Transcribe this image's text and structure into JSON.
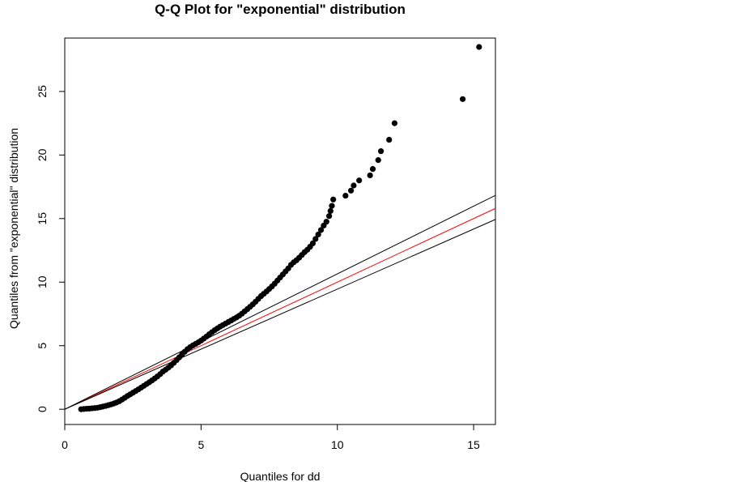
{
  "chart_data": {
    "type": "scatter",
    "title": "Q-Q Plot for \"exponential\" distribution",
    "xlabel": "Quantiles for dd",
    "ylabel": "Quantiles from \"exponential\" distribution",
    "xlim": [
      0,
      15.8
    ],
    "ylim": [
      -1.2,
      29.2
    ],
    "xticks": [
      0,
      5,
      10,
      15
    ],
    "yticks": [
      0,
      5,
      10,
      15,
      20,
      25
    ],
    "grid": false,
    "legend": "none",
    "point_color": "#000000",
    "series": [
      {
        "points": [
          [
            0.6,
            0.0
          ],
          [
            0.7,
            0.02
          ],
          [
            0.8,
            0.04
          ],
          [
            0.9,
            0.05
          ],
          [
            1.0,
            0.07
          ],
          [
            1.1,
            0.09
          ],
          [
            1.2,
            0.12
          ],
          [
            1.3,
            0.16
          ],
          [
            1.4,
            0.21
          ],
          [
            1.5,
            0.26
          ],
          [
            1.6,
            0.32
          ],
          [
            1.7,
            0.38
          ],
          [
            1.8,
            0.45
          ],
          [
            1.9,
            0.53
          ],
          [
            2.0,
            0.63
          ],
          [
            2.1,
            0.76
          ],
          [
            2.2,
            0.9
          ],
          [
            2.3,
            1.04
          ],
          [
            2.4,
            1.17
          ],
          [
            2.5,
            1.3
          ],
          [
            2.6,
            1.43
          ],
          [
            2.7,
            1.56
          ],
          [
            2.8,
            1.7
          ],
          [
            2.9,
            1.84
          ],
          [
            3.0,
            1.98
          ],
          [
            3.1,
            2.12
          ],
          [
            3.2,
            2.27
          ],
          [
            3.3,
            2.42
          ],
          [
            3.4,
            2.58
          ],
          [
            3.5,
            2.76
          ],
          [
            3.6,
            2.96
          ],
          [
            3.7,
            3.11
          ],
          [
            3.8,
            3.27
          ],
          [
            3.9,
            3.45
          ],
          [
            4.0,
            3.65
          ],
          [
            4.1,
            3.86
          ],
          [
            4.2,
            4.08
          ],
          [
            4.3,
            4.3
          ],
          [
            4.4,
            4.52
          ],
          [
            4.5,
            4.72
          ],
          [
            4.6,
            4.88
          ],
          [
            4.7,
            5.02
          ],
          [
            4.8,
            5.14
          ],
          [
            4.9,
            5.26
          ],
          [
            5.0,
            5.4
          ],
          [
            5.1,
            5.56
          ],
          [
            5.2,
            5.72
          ],
          [
            5.3,
            5.9
          ],
          [
            5.4,
            6.06
          ],
          [
            5.5,
            6.22
          ],
          [
            5.6,
            6.36
          ],
          [
            5.7,
            6.5
          ],
          [
            5.8,
            6.62
          ],
          [
            5.9,
            6.74
          ],
          [
            6.0,
            6.86
          ],
          [
            6.1,
            6.98
          ],
          [
            6.2,
            7.1
          ],
          [
            6.3,
            7.22
          ],
          [
            6.4,
            7.36
          ],
          [
            6.5,
            7.52
          ],
          [
            6.6,
            7.7
          ],
          [
            6.7,
            7.88
          ],
          [
            6.8,
            8.06
          ],
          [
            6.9,
            8.25
          ],
          [
            7.0,
            8.46
          ],
          [
            7.1,
            8.68
          ],
          [
            7.2,
            8.9
          ],
          [
            7.3,
            9.08
          ],
          [
            7.4,
            9.26
          ],
          [
            7.5,
            9.46
          ],
          [
            7.6,
            9.66
          ],
          [
            7.7,
            9.88
          ],
          [
            7.8,
            10.12
          ],
          [
            7.9,
            10.36
          ],
          [
            8.0,
            10.6
          ],
          [
            8.1,
            10.84
          ],
          [
            8.2,
            11.08
          ],
          [
            8.3,
            11.36
          ],
          [
            8.4,
            11.56
          ],
          [
            8.5,
            11.72
          ],
          [
            8.6,
            11.92
          ],
          [
            8.7,
            12.14
          ],
          [
            8.8,
            12.36
          ],
          [
            8.9,
            12.55
          ],
          [
            9.0,
            12.78
          ],
          [
            9.1,
            13.05
          ],
          [
            9.2,
            13.4
          ],
          [
            9.3,
            13.75
          ],
          [
            9.4,
            14.1
          ],
          [
            9.5,
            14.45
          ],
          [
            9.6,
            14.75
          ],
          [
            9.7,
            15.2
          ],
          [
            9.75,
            15.6
          ],
          [
            9.8,
            16.0
          ],
          [
            9.85,
            16.5
          ],
          [
            10.3,
            16.8
          ],
          [
            10.5,
            17.2
          ],
          [
            10.6,
            17.6
          ],
          [
            10.8,
            18.0
          ],
          [
            11.2,
            18.4
          ],
          [
            11.3,
            18.9
          ],
          [
            11.5,
            19.6
          ],
          [
            11.6,
            20.3
          ],
          [
            11.9,
            21.2
          ],
          [
            12.1,
            22.5
          ],
          [
            14.6,
            24.4
          ],
          [
            15.2,
            28.5
          ]
        ]
      }
    ],
    "lines": [
      {
        "kind": "reference",
        "color": "#ff0000",
        "intercept": 0,
        "slope": 1.0
      },
      {
        "kind": "upper-bound",
        "color": "#000000",
        "intercept": 0,
        "slope": 1.065
      },
      {
        "kind": "lower-bound",
        "color": "#000000",
        "intercept": 0,
        "slope": 0.945
      }
    ]
  }
}
